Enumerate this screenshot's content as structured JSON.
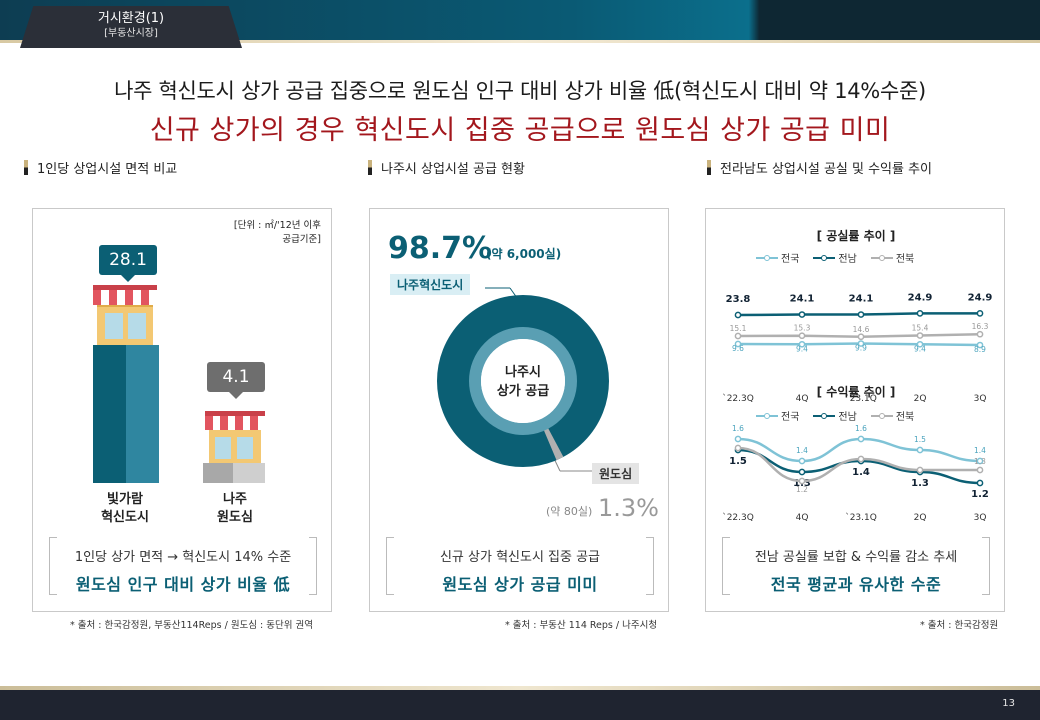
{
  "header": {
    "tab_title": "거시환경(1)",
    "tab_subtitle": "[부동산시장]"
  },
  "headline": {
    "line1": "나주 혁신도시 상가 공급 집중으로 원도심 인구 대비 상가 비율 低(혁신도시 대비 약 14%수준)",
    "line2": "신규 상가의 경우 혁신도시 집중 공급으로 원도심 상가 공급 미미"
  },
  "colors": {
    "teal": "#0b5f74",
    "light_teal": "#7fc3d6",
    "gray": "#b0b0b0",
    "red": "#a3171d"
  },
  "panel1": {
    "section_title": "1인당 상업시설 면적 비교",
    "unit_note_line1": "[단위 : ㎡/'12년 이후",
    "unit_note_line2": "공급기준]",
    "bars": [
      {
        "value_label": "28.1",
        "label_line1": "빛가람",
        "label_line2": "혁신도시"
      },
      {
        "value_label": "4.1",
        "label_line1": "나주",
        "label_line2": "원도심"
      }
    ],
    "conclusion_line1": "1인당 상가 면적 → 혁신도시 14% 수준",
    "conclusion_line2": "원도심 인구 대비 상가 비율 低",
    "source": "* 출처 : 한국감정원, 부동산114Reps / 원도심 : 동단위 권역"
  },
  "panel2": {
    "section_title": "나주시 상업시설 공급 현황",
    "big_pct": "98.7%",
    "big_pct_sub": "(약 6,000실)",
    "tag_main": "나주혁신도시",
    "center_line1": "나주시",
    "center_line2": "상가 공급",
    "tag_small": "원도심",
    "small_pct_sub": "(약 80실)",
    "small_pct": "1.3%",
    "conclusion_line1": "신규 상가 혁신도시 집중 공급",
    "conclusion_line2": "원도심 상가 공급 미미",
    "source": "* 출처 : 부동산 114 Reps / 나주시청"
  },
  "panel3": {
    "section_title": "전라남도 상업시설 공실 및 수익률 추이",
    "legend": [
      "전국",
      "전남",
      "전북"
    ],
    "vacancy": {
      "title": "[ 공실률 추이 ]",
      "x": [
        "`22.3Q",
        "4Q",
        "`23.1Q",
        "2Q",
        "3Q"
      ],
      "series": [
        {
          "name": "전국",
          "values": [
            9.6,
            9.4,
            9.9,
            9.4,
            8.9
          ],
          "labels": [
            "9.6",
            "9.4",
            "9.9",
            "9.4",
            "8.9"
          ]
        },
        {
          "name": "전남",
          "values": [
            23.8,
            24.1,
            24.1,
            24.9,
            24.9
          ],
          "labels": [
            "23.8",
            "24.1",
            "24.1",
            "24.9",
            "24.9"
          ]
        },
        {
          "name": "전북",
          "values": [
            15.1,
            15.3,
            14.6,
            15.4,
            16.3
          ],
          "labels": [
            "15.1",
            "15.3",
            "14.6",
            "15.4",
            "16.3"
          ]
        }
      ]
    },
    "yield": {
      "title": "[ 수익률 추이 ]",
      "x": [
        "`22.3Q",
        "4Q",
        "`23.1Q",
        "2Q",
        "3Q"
      ],
      "series": [
        {
          "name": "전국",
          "values": [
            1.6,
            1.4,
            1.6,
            1.5,
            1.4
          ],
          "labels": [
            "1.6",
            "1.4",
            "1.6",
            "1.5",
            "1.4"
          ]
        },
        {
          "name": "전남",
          "values": [
            1.5,
            1.3,
            1.4,
            1.3,
            1.2
          ],
          "labels": [
            "1.5",
            "1.3",
            "1.4",
            "1.3",
            "1.2"
          ]
        },
        {
          "name": "전북",
          "values": [
            1.5,
            1.2,
            1.4,
            1.3,
            1.3
          ],
          "labels": [
            "",
            "1.2",
            "",
            "",
            "1.3"
          ]
        }
      ]
    },
    "conclusion_line1": "전남 공실률 보합 & 수익률 감소 추세",
    "conclusion_line2": "전국 평균과 유사한 수준",
    "source": "* 출처 : 한국감정원"
  },
  "page_number": "13"
}
